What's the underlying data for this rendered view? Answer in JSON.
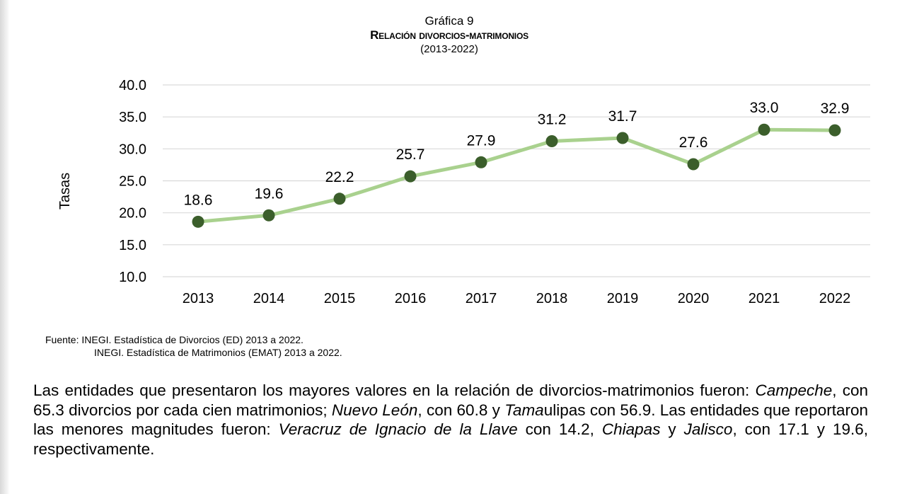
{
  "header": {
    "title": "Gráfica 9",
    "subtitle": "Relación divorcios-matrimonios",
    "period": "(2013-2022)"
  },
  "chart_data": {
    "type": "line",
    "title": "Relación divorcios-matrimonios",
    "ylabel": "Tasas",
    "xlabel": "",
    "categories": [
      "2013",
      "2014",
      "2015",
      "2016",
      "2017",
      "2018",
      "2019",
      "2020",
      "2021",
      "2022"
    ],
    "values": [
      18.6,
      19.6,
      22.2,
      25.7,
      27.9,
      31.2,
      31.7,
      27.6,
      33.0,
      32.9
    ],
    "value_labels": [
      "18.6",
      "19.6",
      "22.2",
      "25.7",
      "27.9",
      "31.2",
      "31.7",
      "27.6",
      "33.0",
      "32.9"
    ],
    "ylim": [
      10,
      40
    ],
    "yticks": [
      "10.0",
      "15.0",
      "20.0",
      "25.0",
      "30.0",
      "35.0",
      "40.0"
    ],
    "grid": true,
    "legend": "none",
    "colors": {
      "line": "#a9d18e",
      "marker": "#3b5e2b",
      "grid": "#d9d9d9"
    }
  },
  "source": {
    "line1": "Fuente: INEGI. Estadística de Divorcios (ED) 2013 a 2022.",
    "line2": "INEGI. Estadística de Matrimonios (EMAT) 2013 a 2022."
  },
  "paragraph": {
    "p1": "Las entidades que presentaron los mayores valores en la relación de divorcios-matrimonios fueron: ",
    "e1": "Campeche",
    "p2": ", con 65.3 divorcios por cada cien matrimonios; ",
    "e2": "Nuevo León",
    "p3": ", con 60.8 y ",
    "e3": "Tama",
    "p4": "ulipas con 56.9. Las entidades que reportaron las menores magnitudes fueron: ",
    "e4": "Veracruz de Ignacio de la Llave",
    "p5": " con 14.2, ",
    "e5": "Chiapas",
    "p6": " y ",
    "e6": "Jalisco",
    "p7": ", con 17.1 y 19.6, respectivamente."
  }
}
